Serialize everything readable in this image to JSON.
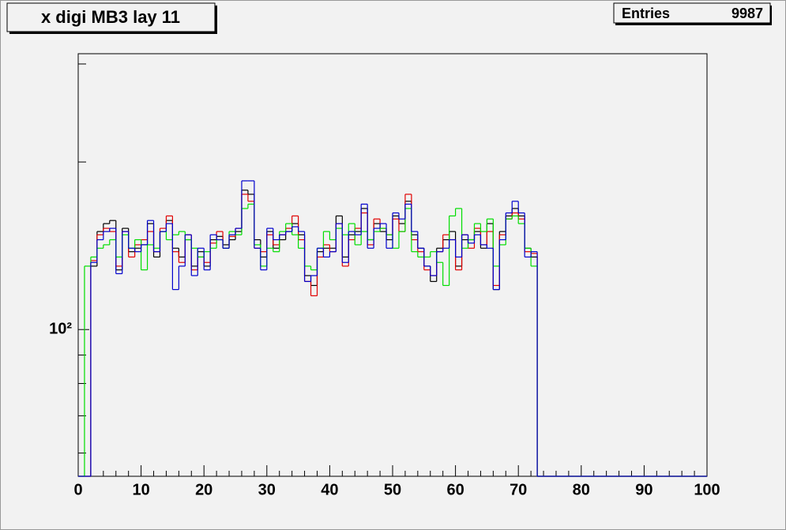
{
  "chart_data": {
    "type": "histogram",
    "title": "x digi MB3 lay 11",
    "stats": {
      "label": "Entries",
      "value": 9987
    },
    "bins": [
      0,
      1,
      2,
      3,
      4,
      5,
      6,
      7,
      8,
      9,
      10,
      11,
      12,
      13,
      14,
      15,
      16,
      17,
      18,
      19,
      20,
      21,
      22,
      23,
      24,
      25,
      26,
      27,
      28,
      29,
      30,
      31,
      32,
      33,
      34,
      35,
      36,
      37,
      38,
      39,
      40,
      41,
      42,
      43,
      44,
      45,
      46,
      47,
      48,
      49,
      50,
      51,
      52,
      53,
      54,
      55,
      56,
      57,
      58,
      59,
      60,
      61,
      62,
      63,
      64,
      65,
      66,
      67,
      68,
      69,
      70,
      71,
      72,
      73,
      74,
      75,
      76,
      77,
      78,
      79,
      80,
      81,
      82,
      83,
      84,
      85,
      86,
      87,
      88,
      89,
      90,
      91,
      92,
      93,
      94,
      95,
      96,
      97,
      98,
      99,
      100
    ],
    "series": [
      {
        "color": "#000000",
        "values": [
          0,
          0,
          130,
          150,
          155,
          157,
          128,
          152,
          138,
          140,
          142,
          155,
          135,
          150,
          157,
          140,
          135,
          145,
          130,
          138,
          130,
          145,
          147,
          142,
          145,
          150,
          178,
          175,
          145,
          135,
          150,
          140,
          145,
          150,
          155,
          148,
          125,
          120,
          138,
          140,
          140,
          160,
          135,
          148,
          150,
          165,
          145,
          155,
          150,
          145,
          160,
          155,
          170,
          148,
          140,
          130,
          122,
          140,
          145,
          150,
          130,
          145,
          145,
          150,
          140,
          155,
          118,
          150,
          160,
          165,
          160,
          140,
          135,
          0,
          0,
          0,
          0,
          0,
          0,
          0,
          0,
          0,
          0,
          0,
          0,
          0,
          0,
          0,
          0,
          0,
          0,
          0,
          0,
          0,
          0,
          0,
          0,
          0,
          0,
          0
        ]
      },
      {
        "color": "#e00000",
        "values": [
          0,
          0,
          133,
          148,
          152,
          150,
          130,
          150,
          135,
          142,
          145,
          150,
          138,
          152,
          160,
          138,
          132,
          148,
          128,
          135,
          132,
          143,
          150,
          140,
          147,
          152,
          175,
          170,
          140,
          138,
          148,
          142,
          148,
          152,
          160,
          145,
          122,
          115,
          135,
          142,
          138,
          155,
          130,
          145,
          152,
          162,
          142,
          158,
          152,
          148,
          158,
          150,
          175,
          145,
          138,
          128,
          125,
          138,
          148,
          145,
          128,
          148,
          140,
          152,
          142,
          150,
          120,
          148,
          158,
          162,
          158,
          138,
          137,
          0,
          0,
          0,
          0,
          0,
          0,
          0,
          0,
          0,
          0,
          0,
          0,
          0,
          0,
          0,
          0,
          0,
          0,
          0,
          0,
          0,
          0,
          0,
          0,
          0,
          0,
          0
        ]
      },
      {
        "color": "#00dd00",
        "values": [
          0,
          130,
          135,
          140,
          142,
          145,
          135,
          148,
          140,
          145,
          128,
          142,
          140,
          150,
          145,
          148,
          150,
          145,
          140,
          135,
          138,
          140,
          145,
          140,
          150,
          148,
          165,
          168,
          142,
          130,
          140,
          138,
          150,
          155,
          148,
          140,
          130,
          128,
          140,
          150,
          145,
          152,
          148,
          155,
          142,
          150,
          145,
          150,
          152,
          148,
          140,
          150,
          165,
          138,
          135,
          135,
          138,
          132,
          120,
          160,
          165,
          140,
          145,
          155,
          150,
          158,
          130,
          142,
          158,
          160,
          155,
          140,
          130,
          0,
          0,
          0,
          0,
          0,
          0,
          0,
          0,
          0,
          0,
          0,
          0,
          0,
          0,
          0,
          0,
          0,
          0,
          0,
          0,
          0,
          0,
          0,
          0,
          0,
          0,
          0
        ]
      },
      {
        "color": "#0000cc",
        "values": [
          0,
          0,
          132,
          145,
          150,
          152,
          126,
          150,
          140,
          138,
          142,
          157,
          138,
          150,
          155,
          118,
          130,
          148,
          125,
          140,
          128,
          148,
          145,
          140,
          148,
          152,
          185,
          185,
          140,
          128,
          152,
          145,
          148,
          150,
          153,
          150,
          122,
          125,
          140,
          135,
          138,
          155,
          132,
          150,
          148,
          168,
          140,
          152,
          155,
          140,
          162,
          158,
          168,
          150,
          140,
          130,
          125,
          138,
          140,
          145,
          135,
          148,
          143,
          148,
          142,
          140,
          118,
          145,
          162,
          170,
          162,
          135,
          138,
          0,
          0,
          0,
          0,
          0,
          0,
          0,
          0,
          0,
          0,
          0,
          0,
          0,
          0,
          0,
          0,
          0,
          0,
          0,
          0,
          0,
          0,
          0,
          0,
          0,
          0,
          0
        ]
      }
    ],
    "xlim": [
      0,
      100
    ],
    "xticks": [
      0,
      10,
      20,
      30,
      40,
      50,
      60,
      70,
      80,
      90,
      100
    ],
    "xminor_ticks": [
      2,
      4,
      6,
      8,
      12,
      14,
      16,
      18,
      22,
      24,
      26,
      28,
      32,
      34,
      36,
      38,
      42,
      44,
      46,
      48,
      52,
      54,
      56,
      58,
      62,
      64,
      66,
      68,
      72,
      74,
      76,
      78,
      82,
      84,
      86,
      88,
      92,
      94,
      96,
      98
    ],
    "ylim": [
      54.5,
      313
    ],
    "log_y": true,
    "yticks": [
      {
        "value": 100,
        "label": "10²"
      }
    ],
    "yminor_ticks": [
      60,
      70,
      80,
      90,
      200,
      300
    ]
  }
}
